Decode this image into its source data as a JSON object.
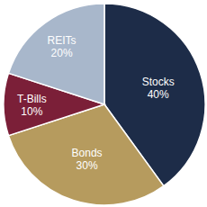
{
  "chart_data": {
    "type": "pie",
    "categories": [
      "Stocks",
      "Bonds",
      "T-Bills",
      "REITs"
    ],
    "values": [
      40,
      30,
      10,
      20
    ],
    "value_labels": [
      "40%",
      "30%",
      "10%",
      "20%"
    ],
    "colors": [
      "#1d2c48",
      "#b69b5e",
      "#7b1f38",
      "#a8b7cb"
    ],
    "data_labels": true
  }
}
